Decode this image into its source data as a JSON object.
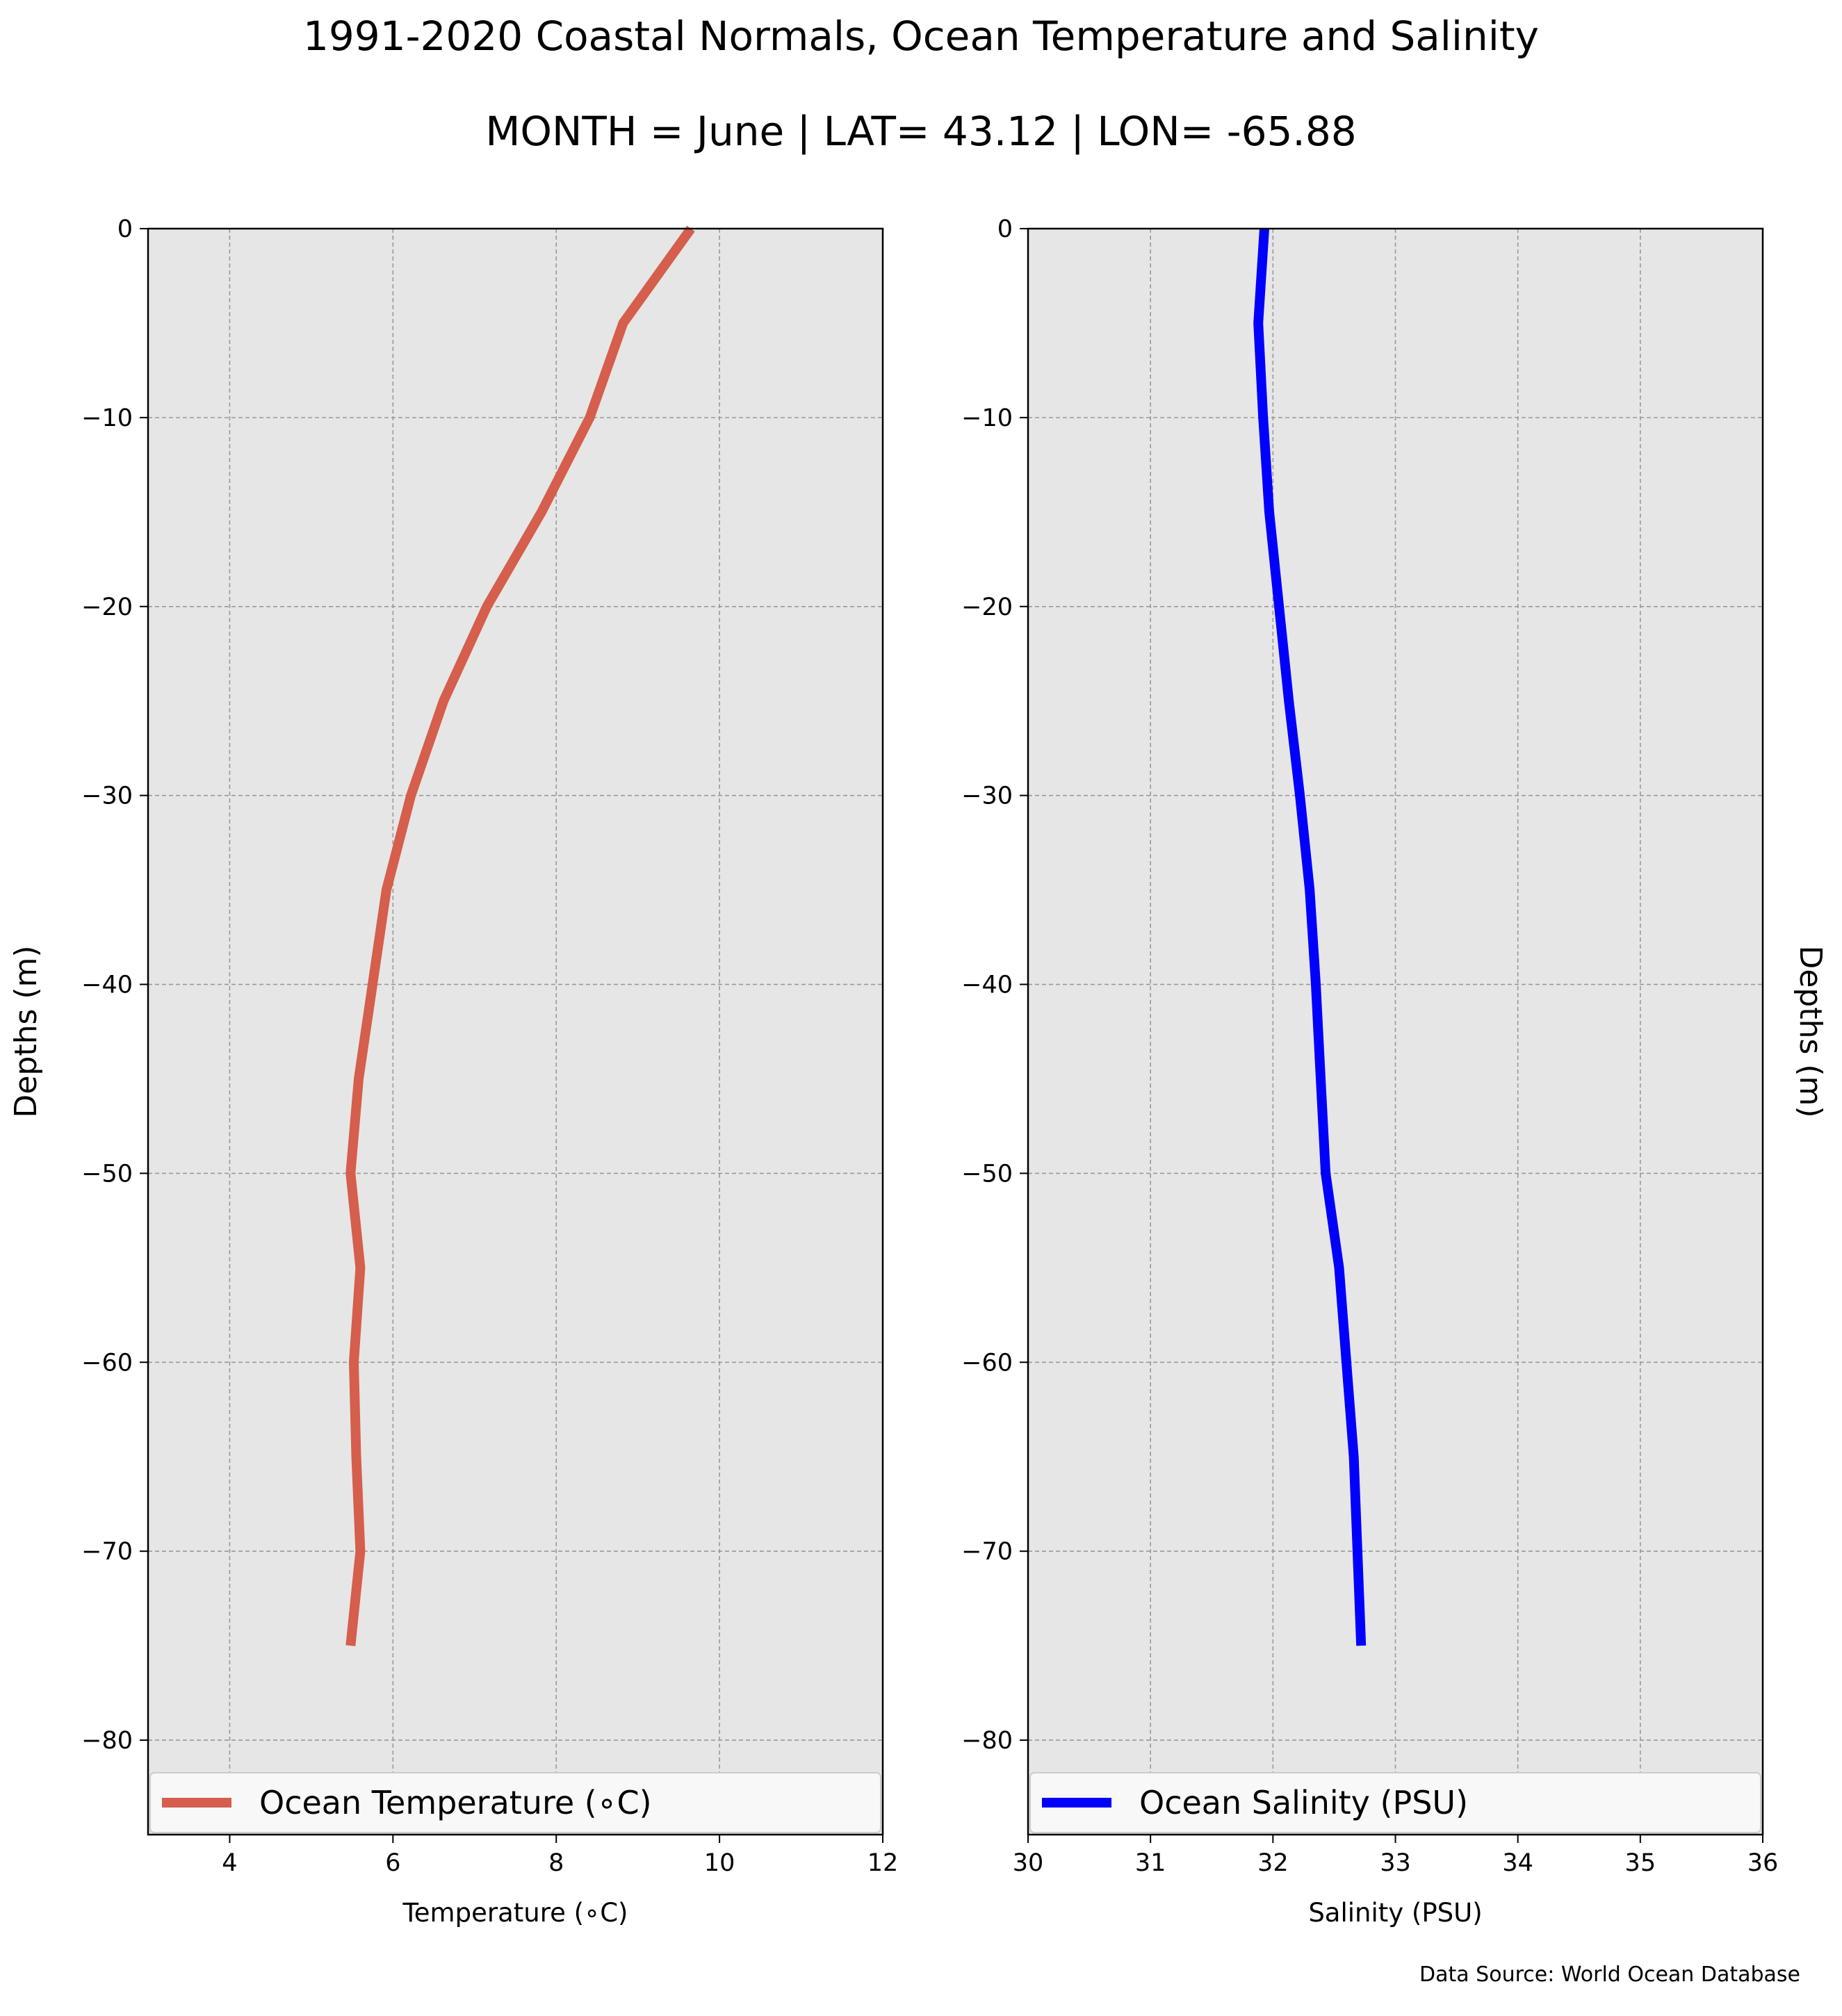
{
  "title": "1991-2020 Coastal Normals, Ocean Temperature and Salinity",
  "subtitle": "MONTH = June | LAT= 43.12 | LON= -65.88",
  "source_note": "Data Source: World Ocean Database",
  "colors": {
    "axes_bg": "#e6e6e6",
    "grid": "#999999",
    "temperature_line": "#d55e4c",
    "salinity_line": "#0000ff",
    "legend_bg": "#f8f8f8"
  },
  "chart_data": [
    {
      "type": "line",
      "title": "",
      "xlabel": "Temperature (∘C)",
      "ylabel": "Depths (m)",
      "xlim": [
        3,
        12
      ],
      "ylim": [
        -85,
        0
      ],
      "xticks": [
        4,
        6,
        8,
        10,
        12
      ],
      "xtick_labels": [
        "4",
        "6",
        "8",
        "10",
        "12"
      ],
      "yticks": [
        0,
        -10,
        -20,
        -30,
        -40,
        -50,
        -60,
        -70,
        -80
      ],
      "ytick_labels": [
        "0",
        "−10",
        "−20",
        "−30",
        "−40",
        "−50",
        "−60",
        "−70",
        "−80"
      ],
      "grid": true,
      "legend_position": "bottom",
      "series": [
        {
          "name": "Ocean Temperature (∘C)",
          "color": "#d55e4c",
          "x": [
            9.65,
            8.82,
            8.41,
            7.82,
            7.15,
            6.62,
            6.22,
            5.92,
            5.75,
            5.58,
            5.48,
            5.6,
            5.52,
            5.55,
            5.6,
            5.48
          ],
          "y": [
            0,
            -5,
            -10,
            -15,
            -20,
            -25,
            -30,
            -35,
            -40,
            -45,
            -50,
            -55,
            -60,
            -65,
            -70,
            -75
          ]
        }
      ]
    },
    {
      "type": "line",
      "title": "",
      "xlabel": "Salinity (PSU)",
      "ylabel": "Depths (m)",
      "xlim": [
        30,
        36
      ],
      "ylim": [
        -85,
        0
      ],
      "xticks": [
        30,
        31,
        32,
        33,
        34,
        35,
        36
      ],
      "xtick_labels": [
        "30",
        "31",
        "32",
        "33",
        "34",
        "35",
        "36"
      ],
      "yticks": [
        0,
        -10,
        -20,
        -30,
        -40,
        -50,
        -60,
        -70,
        -80
      ],
      "ytick_labels": [
        "0",
        "−10",
        "−20",
        "−30",
        "−40",
        "−50",
        "−60",
        "−70",
        "−80"
      ],
      "grid": true,
      "legend_position": "bottom",
      "series": [
        {
          "name": "Ocean Salinity (PSU)",
          "color": "#0000ff",
          "x": [
            31.93,
            31.88,
            31.92,
            31.97,
            32.05,
            32.13,
            32.22,
            32.3,
            32.35,
            32.39,
            32.43,
            32.54,
            32.6,
            32.66,
            32.69,
            32.72
          ],
          "y": [
            0,
            -5,
            -10,
            -15,
            -20,
            -25,
            -30,
            -35,
            -40,
            -45,
            -50,
            -55,
            -60,
            -65,
            -70,
            -75
          ]
        }
      ]
    }
  ]
}
